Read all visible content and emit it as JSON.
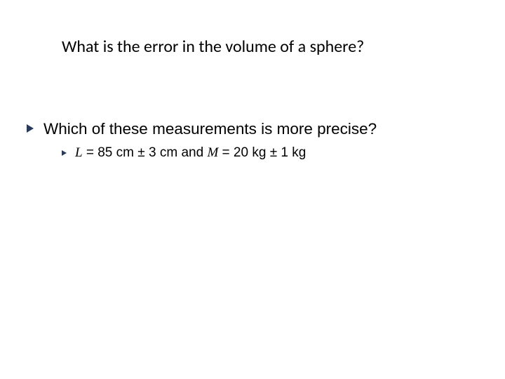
{
  "slide": {
    "title": "What is the error in the volume of a sphere?",
    "bullet1": {
      "text": "Which of these measurements is more precise?"
    },
    "bullet2": {
      "L_var": "L",
      "eq1": " = ",
      "L_val": "85",
      "L_unit": " cm ",
      "pm1": "± ",
      "L_err": "3",
      "L_err_unit": " cm",
      "and": " and ",
      "M_var": "M",
      "eq2": " = ",
      "M_val": "20",
      "M_unit": " kg ",
      "pm2": "± ",
      "M_err": "1",
      "M_err_unit": " kg"
    }
  },
  "style": {
    "title_fontsize": 24,
    "title_color": "#000000",
    "bullet1_fontsize": 22.5,
    "bullet2_fontsize": 19,
    "bullet_color": "#2a3a5a",
    "text_color": "#000000",
    "background": "#ffffff"
  }
}
